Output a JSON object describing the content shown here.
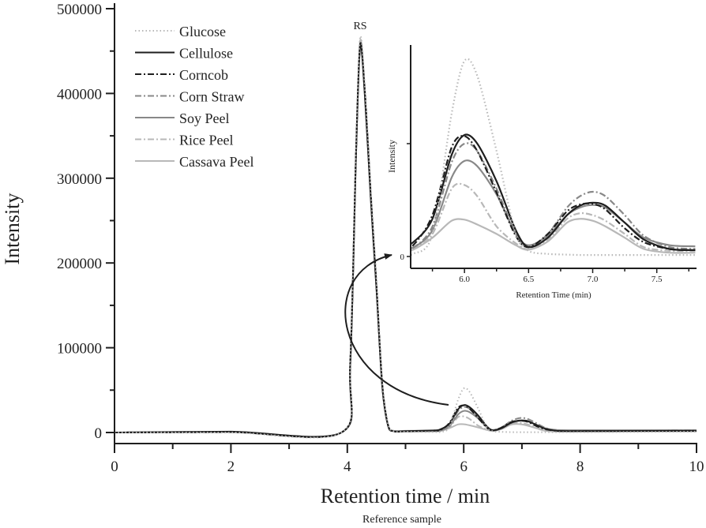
{
  "chart_data": [
    {
      "type": "line",
      "xlabel": "Retention time / min",
      "ylabel": "Intensity",
      "caption": "Reference sample",
      "xlim": [
        0,
        10
      ],
      "ylim": [
        0,
        500000
      ],
      "xticks": [
        "0",
        "2",
        "4",
        "6",
        "8",
        "10"
      ],
      "yticks": [
        "0",
        "100000",
        "200000",
        "300000",
        "400000",
        "500000"
      ],
      "grid": false,
      "legend_position": "top-left",
      "annotations": [
        "RS"
      ],
      "x": [
        0,
        2,
        3.9,
        4.05,
        4.15,
        4.22,
        4.3,
        4.4,
        4.5,
        4.6,
        4.7,
        4.8,
        5.0,
        5.5,
        5.6,
        5.75,
        5.9,
        6.0,
        6.1,
        6.25,
        6.4,
        6.5,
        6.65,
        6.8,
        6.9,
        7.0,
        7.1,
        7.25,
        7.4,
        7.6,
        7.8,
        8.5,
        10
      ],
      "series": [
        {
          "name": "Glucose",
          "color": "#b8b8b8",
          "style": "dotted",
          "values": [
            0,
            0,
            0,
            90000,
            340000,
            466000,
            410000,
            290000,
            180000,
            60000,
            10000,
            1500,
            800,
            600,
            700,
            6000,
            38000,
            52000,
            48000,
            28000,
            6000,
            1500,
            700,
            500,
            400,
            400,
            400,
            400,
            400,
            400,
            400,
            500,
            1000
          ]
        },
        {
          "name": "Cellulose",
          "color": "#1e1e1e",
          "style": "solid",
          "values": [
            0,
            1000,
            0,
            80000,
            330000,
            458000,
            400000,
            280000,
            170000,
            55000,
            8000,
            1500,
            1500,
            2500,
            3800,
            10000,
            27000,
            32300,
            30000,
            20000,
            7000,
            2500,
            5000,
            11000,
            13500,
            14300,
            13500,
            9000,
            4500,
            2000,
            1700,
            1800,
            2000
          ]
        },
        {
          "name": "Corncob",
          "color": "#1e1e1e",
          "style": "dash-dot",
          "values": [
            0,
            500,
            0,
            85000,
            335000,
            455000,
            405000,
            285000,
            175000,
            58000,
            9000,
            1500,
            1500,
            2200,
            3000,
            11000,
            29000,
            32000,
            28000,
            17000,
            5500,
            2500,
            6000,
            12000,
            13800,
            14000,
            12500,
            7500,
            3800,
            2000,
            1700,
            1800,
            2000
          ]
        },
        {
          "name": "Corn Straw",
          "color": "#888888",
          "style": "dash-dot",
          "values": [
            0,
            500,
            0,
            82000,
            332000,
            452000,
            402000,
            282000,
            172000,
            56000,
            8500,
            1500,
            1500,
            2000,
            2300,
            8000,
            25000,
            30000,
            28000,
            18000,
            6000,
            2500,
            6000,
            13000,
            16000,
            17200,
            16000,
            11000,
            5500,
            2500,
            2000,
            2000,
            2000
          ]
        },
        {
          "name": "Soy Peel",
          "color": "#888888",
          "style": "solid",
          "values": [
            0,
            500,
            0,
            80000,
            328000,
            456000,
            398000,
            278000,
            170000,
            55000,
            8000,
            2000,
            2000,
            2200,
            2400,
            7000,
            21000,
            25400,
            24000,
            16500,
            6000,
            3000,
            5500,
            11000,
            13000,
            13700,
            13000,
            9000,
            5000,
            3000,
            2700,
            2700,
            2800
          ]
        },
        {
          "name": "Rice Peel",
          "color": "#b8b8b8",
          "style": "dash-dot",
          "values": [
            0,
            500,
            0,
            82000,
            330000,
            454000,
            400000,
            280000,
            170000,
            55000,
            8000,
            1500,
            1200,
            1500,
            2000,
            6000,
            18000,
            19000,
            16000,
            8000,
            3500,
            2000,
            4500,
            10000,
            11500,
            11000,
            9500,
            6000,
            2500,
            1500,
            1500,
            1500,
            1800
          ]
        },
        {
          "name": "Cassava Peel",
          "color": "#b8b8b8",
          "style": "solid",
          "values": [
            0,
            500,
            0,
            84000,
            334000,
            462000,
            405000,
            285000,
            175000,
            58000,
            9000,
            1500,
            1000,
            1200,
            1800,
            5000,
            9500,
            9800,
            8500,
            6000,
            3000,
            1800,
            4000,
            9000,
            10000,
            9500,
            8000,
            5000,
            2000,
            1000,
            1000,
            1000,
            1200
          ]
        }
      ]
    },
    {
      "type": "line",
      "inset": true,
      "xlabel": "Retention Time (min)",
      "ylabel": "Intensity",
      "xlim": [
        5.58,
        7.81
      ],
      "ylim": [
        -4500,
        62000
      ],
      "xticks": [
        "6.0",
        "6.5",
        "7.0",
        "7.5"
      ],
      "yticks": [
        "0"
      ],
      "grid": false
    }
  ]
}
